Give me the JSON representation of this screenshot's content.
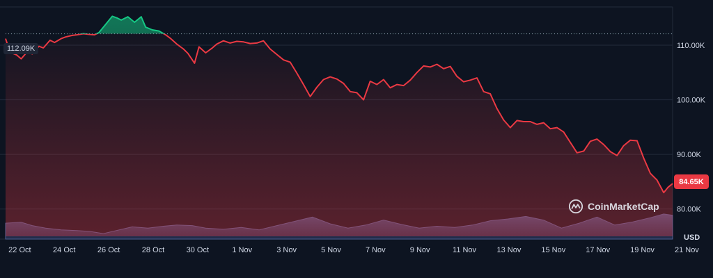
{
  "chart_data": {
    "type": "line",
    "currency": "USD",
    "y_unit": "USD",
    "ylim": [
      75000,
      117000
    ],
    "yticks": [
      80000,
      90000,
      100000,
      110000
    ],
    "ytick_labels": [
      "80.00K",
      "90.00K",
      "100.00K",
      "110.00K"
    ],
    "xlim": [
      21.8,
      51.8
    ],
    "x_tick_positions": [
      22,
      24,
      26,
      28,
      30,
      32,
      34,
      36,
      38,
      40,
      42,
      44,
      46,
      48,
      50,
      52
    ],
    "x_tick_labels": [
      "22 Oct",
      "24 Oct",
      "26 Oct",
      "28 Oct",
      "30 Oct",
      "1 Nov",
      "3 Nov",
      "5 Nov",
      "7 Nov",
      "9 Nov",
      "11 Nov",
      "13 Nov",
      "15 Nov",
      "17 Nov",
      "19 Nov",
      "21 Nov"
    ],
    "x_note": "x values are day-of-month counted continuously from 1 Oct (32 = 1 Nov)",
    "reference_price": 112090,
    "reference_label": "112.09K",
    "last_price": 84650,
    "last_price_label": "84.65K",
    "series": [
      {
        "name": "Price",
        "x": [
          21.8,
          22.0,
          22.3,
          22.5,
          22.8,
          23.0,
          23.3,
          23.5,
          23.8,
          24.0,
          24.3,
          24.5,
          24.8,
          25.0,
          25.3,
          25.5,
          25.8,
          26.0,
          26.3,
          26.6,
          26.8,
          27.0,
          27.3,
          27.6,
          27.9,
          28.1,
          28.4,
          28.7,
          29.0,
          29.2,
          29.5,
          29.8,
          30.0,
          30.3,
          30.5,
          30.8,
          31.1,
          31.3,
          31.6,
          31.9,
          32.2,
          32.5,
          32.8,
          33.1,
          33.4,
          33.7,
          34.0,
          34.3,
          34.6,
          34.9,
          35.2,
          35.5,
          35.8,
          36.1,
          36.4,
          36.7,
          37.0,
          37.3,
          37.6,
          37.9,
          38.2,
          38.5,
          38.8,
          39.1,
          39.4,
          39.7,
          40.0,
          40.3,
          40.6,
          40.9,
          41.2,
          41.5,
          41.8,
          42.1,
          42.4,
          42.7,
          43.0,
          43.3,
          43.6,
          43.9,
          44.2,
          44.5,
          44.8,
          45.1,
          45.4,
          45.7,
          46.0,
          46.3,
          46.6,
          46.9,
          47.2,
          47.5,
          47.8,
          48.1,
          48.4,
          48.7,
          49.0,
          49.3,
          49.6,
          49.9,
          50.2,
          50.5,
          50.8,
          51.1,
          51.4,
          51.6,
          51.8
        ],
        "y": [
          111200,
          108700,
          108200,
          107500,
          108900,
          108400,
          109800,
          109500,
          110900,
          110500,
          111200,
          111500,
          111800,
          111900,
          112100,
          112000,
          111900,
          112300,
          113800,
          115300,
          115000,
          114600,
          115200,
          114200,
          115200,
          113300,
          112800,
          112600,
          111900,
          111300,
          110200,
          109300,
          108500,
          106700,
          109700,
          108600,
          109500,
          110200,
          110800,
          110400,
          110700,
          110600,
          110300,
          110400,
          110800,
          109300,
          108300,
          107300,
          106900,
          104900,
          102800,
          100600,
          102300,
          103700,
          104200,
          103800,
          103000,
          101500,
          101300,
          100000,
          103400,
          102800,
          103700,
          102200,
          102800,
          102600,
          103600,
          105000,
          106200,
          106000,
          106500,
          105700,
          106100,
          104300,
          103300,
          103600,
          104000,
          101500,
          101100,
          98400,
          96300,
          94900,
          96200,
          96000,
          96000,
          95500,
          95800,
          94700,
          94900,
          94100,
          92200,
          90300,
          90600,
          92400,
          92800,
          91800,
          90500,
          89800,
          91600,
          92600,
          92500,
          89300,
          86500,
          85300,
          83000,
          84000,
          84650
        ],
        "color": "#ea3943",
        "above_reference_color": "#16c784"
      },
      {
        "name": "Volume",
        "x": [
          21.8,
          22.5,
          23.0,
          23.6,
          24.3,
          25.0,
          25.6,
          26.2,
          26.9,
          27.5,
          28.2,
          28.9,
          29.5,
          30.2,
          30.8,
          31.6,
          32.4,
          33.2,
          34.0,
          34.8,
          35.6,
          36.4,
          37.2,
          38.0,
          38.8,
          39.6,
          40.4,
          41.2,
          42.0,
          42.8,
          43.6,
          44.4,
          45.2,
          46.0,
          46.8,
          47.6,
          48.4,
          49.2,
          50.0,
          50.8,
          51.4,
          51.8
        ],
        "y": [
          0.52,
          0.55,
          0.44,
          0.36,
          0.3,
          0.28,
          0.25,
          0.18,
          0.3,
          0.4,
          0.36,
          0.42,
          0.46,
          0.44,
          0.36,
          0.32,
          0.38,
          0.3,
          0.44,
          0.58,
          0.72,
          0.5,
          0.36,
          0.46,
          0.62,
          0.48,
          0.36,
          0.42,
          0.38,
          0.46,
          0.6,
          0.66,
          0.74,
          0.62,
          0.36,
          0.52,
          0.72,
          0.46,
          0.56,
          0.7,
          0.82,
          0.78
        ],
        "unit": "relative",
        "color": "#3b4a7a"
      }
    ]
  },
  "labels": {
    "brand": "CoinMarketCap",
    "currency": "USD"
  },
  "colors": {
    "background": "#0d1421",
    "down": "#ea3943",
    "up": "#16c784",
    "grid": "#222b3b",
    "volume": "#3b4a7a"
  }
}
